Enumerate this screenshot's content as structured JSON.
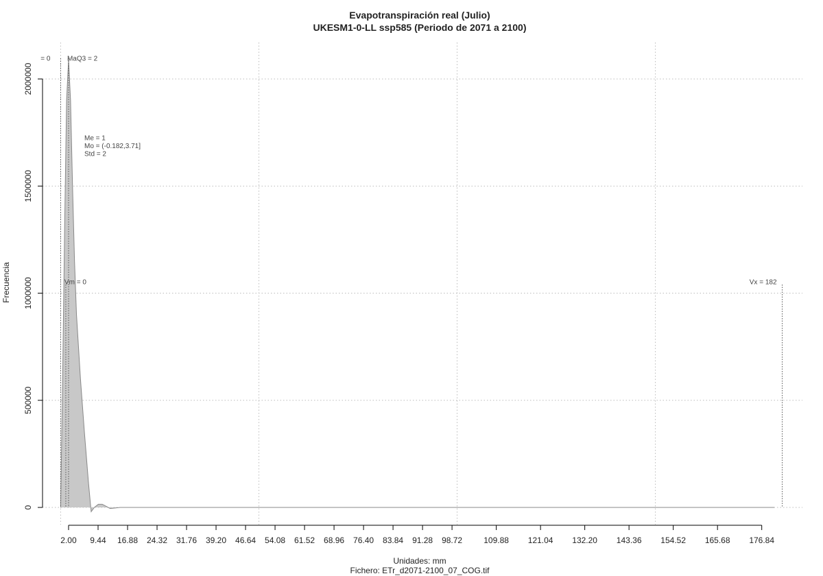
{
  "chart_data": {
    "type": "area",
    "title": "Evapotranspiración real (Julio)",
    "subtitle": "UKESM1-0-LL ssp585 (Periodo de 2071 a 2100)",
    "x_label": "Unidades: mm",
    "caption": "Fichero: ETr_d2071-2100_07_COG.tif",
    "y_label": "Frecuencia",
    "x": [
      0,
      0.5,
      1,
      1.5,
      2,
      2.5,
      3,
      3.5,
      4,
      5,
      6,
      7,
      7.7,
      8.5,
      9.5,
      10.5,
      11.5,
      12.5,
      13.5,
      15,
      180
    ],
    "values": [
      0,
      600000,
      1300000,
      1900000,
      2090000,
      1900000,
      1500000,
      1150000,
      900000,
      600000,
      350000,
      120000,
      -20000,
      0,
      15000,
      15000,
      5000,
      -5000,
      -3000,
      0,
      0
    ],
    "color": "#c8c8c8",
    "line_color": "#888888",
    "xlim": [
      -4.57,
      187.1
    ],
    "ylim": [
      -80000,
      2170000
    ],
    "xticks": [
      {
        "value": 2,
        "label": "2.00"
      },
      {
        "value": 9.44,
        "label": "9.44"
      },
      {
        "value": 16.88,
        "label": "16.88"
      },
      {
        "value": 24.32,
        "label": "24.32"
      },
      {
        "value": 31.76,
        "label": "31.76"
      },
      {
        "value": 39.2,
        "label": "39.20"
      },
      {
        "value": 46.64,
        "label": "46.64"
      },
      {
        "value": 54.08,
        "label": "54.08"
      },
      {
        "value": 61.52,
        "label": "61.52"
      },
      {
        "value": 68.96,
        "label": "68.96"
      },
      {
        "value": 76.4,
        "label": "76.40"
      },
      {
        "value": 83.84,
        "label": "83.84"
      },
      {
        "value": 91.28,
        "label": "91.28"
      },
      {
        "value": 98.72,
        "label": "98.72"
      },
      {
        "value": 109.88,
        "label": "109.88"
      },
      {
        "value": 121.04,
        "label": "121.04"
      },
      {
        "value": 132.2,
        "label": "132.20"
      },
      {
        "value": 143.36,
        "label": "143.36"
      },
      {
        "value": 154.52,
        "label": "154.52"
      },
      {
        "value": 165.68,
        "label": "165.68"
      },
      {
        "value": 176.84,
        "label": "176.84"
      }
    ],
    "yticks": [
      0,
      500000,
      1000000,
      1500000,
      2000000
    ],
    "xgrid": [
      0,
      50,
      100,
      150
    ],
    "grid": true,
    "vlines": [
      {
        "x": 0,
        "label": "= 0",
        "level": "top"
      },
      {
        "x": 1.3,
        "label": "Vm = 0",
        "level": "middle"
      },
      {
        "x": 2,
        "label": "MaQ3 = 2",
        "level": "top"
      },
      {
        "x": 182,
        "label": "Vx = 182",
        "level": "middle"
      }
    ],
    "stats": [
      "Me = 1",
      "Mo = (-0.182,3.71]",
      "Std = 2"
    ]
  }
}
